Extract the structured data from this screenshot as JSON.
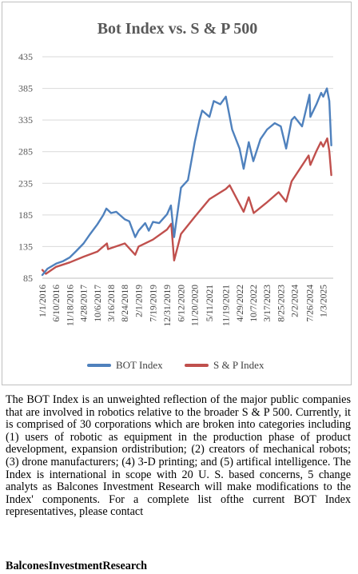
{
  "chart_data": {
    "type": "line",
    "title": "Bot Index vs. S & P 500",
    "xlabel": "",
    "ylabel": "",
    "ylim": [
      85,
      435
    ],
    "y_ticks": [
      85,
      135,
      185,
      235,
      285,
      335,
      385,
      435
    ],
    "x_tick_labels": [
      "1/1/2016",
      "6/10/2016",
      "11/18/2016",
      "4/28/2017",
      "10/6/2017",
      "3/16/2018",
      "8/24/2018",
      "2/1/2019",
      "7/19/2019",
      "12/31/2019",
      "6/12/2020",
      "11/20/2020",
      "5/11/2021",
      "11/19/2021",
      "4/29/2022",
      "10/7/2022",
      "3/17/2023",
      "8/25/2023",
      "2/2/2024",
      "7/26/2024",
      "1/3/2025"
    ],
    "grid": true,
    "legend_position": "bottom",
    "series": [
      {
        "name": "BOT Index",
        "color": "#4f81bd",
        "x": [
          "1/1/2016",
          "3/1/2016",
          "6/10/2016",
          "9/1/2016",
          "11/18/2016",
          "2/1/2017",
          "4/28/2017",
          "7/15/2017",
          "10/6/2017",
          "12/15/2017",
          "1/20/2018",
          "3/16/2018",
          "5/15/2018",
          "8/24/2018",
          "10/15/2018",
          "12/24/2018",
          "2/1/2019",
          "4/20/2019",
          "6/1/2019",
          "7/19/2019",
          "9/30/2019",
          "12/31/2019",
          "2/15/2020",
          "3/23/2020",
          "6/12/2020",
          "9/1/2020",
          "11/20/2020",
          "1/15/2021",
          "2/15/2021",
          "5/11/2021",
          "7/1/2021",
          "9/15/2021",
          "11/19/2021",
          "2/1/2022",
          "4/29/2022",
          "6/16/2022",
          "8/15/2022",
          "10/7/2022",
          "12/30/2022",
          "3/17/2023",
          "6/15/2023",
          "8/25/2023",
          "10/27/2023",
          "12/29/2023",
          "2/2/2024",
          "4/30/2024",
          "7/26/2024",
          "8/5/2024",
          "10/15/2024",
          "12/10/2024",
          "1/3/2025",
          "2/15/2025",
          "3/15/2025",
          "4/8/2025"
        ],
        "values": [
          90,
          100,
          108,
          112,
          118,
          128,
          140,
          155,
          170,
          185,
          195,
          188,
          190,
          178,
          175,
          150,
          160,
          172,
          160,
          174,
          172,
          186,
          200,
          150,
          228,
          240,
          300,
          335,
          350,
          340,
          365,
          360,
          372,
          320,
          290,
          258,
          300,
          270,
          305,
          320,
          330,
          325,
          290,
          335,
          340,
          325,
          375,
          340,
          360,
          378,
          372,
          385,
          365,
          295
        ]
      },
      {
        "name": "S & P Index",
        "color": "#c0504d",
        "x": [
          "1/1/2016",
          "2/11/2016",
          "6/10/2016",
          "11/18/2016",
          "4/28/2017",
          "10/6/2017",
          "1/26/2018",
          "2/8/2018",
          "8/24/2018",
          "12/24/2018",
          "2/1/2019",
          "7/19/2019",
          "12/31/2019",
          "2/19/2020",
          "3/23/2020",
          "6/12/2020",
          "11/20/2020",
          "5/11/2021",
          "11/19/2021",
          "1/3/2022",
          "6/16/2022",
          "8/15/2022",
          "10/12/2022",
          "3/17/2023",
          "7/31/2023",
          "10/27/2023",
          "12/29/2023",
          "7/16/2024",
          "8/5/2024",
          "10/15/2024",
          "12/6/2024",
          "1/3/2025",
          "2/19/2025",
          "3/15/2025",
          "4/8/2025"
        ],
        "values": [
          98,
          92,
          103,
          110,
          119,
          127,
          140,
          131,
          140,
          122,
          135,
          146,
          162,
          171,
          113,
          155,
          182,
          210,
          226,
          232,
          190,
          213,
          188,
          205,
          221,
          206,
          238,
          279,
          264,
          286,
          300,
          293,
          306,
          286,
          248
        ]
      }
    ]
  },
  "description": {
    "text": "The BOT Index is an unweighted reflection of the major public companies that are involved in robotics relative to the broader S & P 500. Currently, it is comprised of 30 corporations which are broken into categories including (1) users of robotic as equipment in the production phase of product development, expansion ordistribution; (2) creators of mechanical robots; (3) drone manufacturers; (4) 3-D printing; and (5) artifical intelligence. The Index is international in scope with 20 U. S. based concerns, 5 change analyts as Balcones Investment Research will make modifications to the Index' components. For a complete list ofthe current BOT Index representatives, please contact",
    "contact": "BalconesInvestmentResearch"
  }
}
